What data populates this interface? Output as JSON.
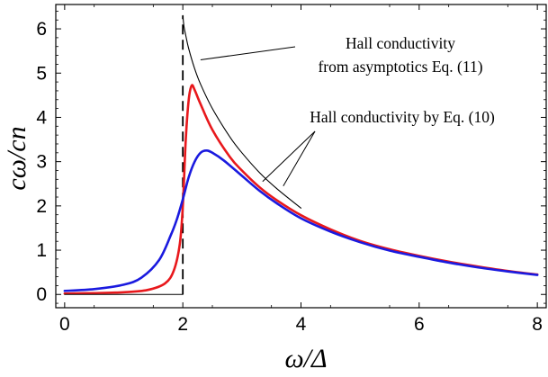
{
  "chart_data": {
    "type": "line",
    "xlabel": "ω/Δ",
    "ylabel": "cω/cn",
    "xlim": [
      -0.15,
      8.15
    ],
    "ylim": [
      -0.3,
      6.55
    ],
    "x_ticks": [
      0,
      2,
      4,
      6,
      8
    ],
    "y_ticks": [
      0,
      1,
      2,
      3,
      4,
      5,
      6
    ],
    "grid": false,
    "series": [
      {
        "color": "#e8181c",
        "x": [
          0,
          0.5,
          1.0,
          1.4,
          1.7,
          1.85,
          1.95,
          2.0,
          2.05,
          2.1,
          2.15,
          2.2,
          2.3,
          2.5,
          2.8,
          3.0,
          3.3,
          3.6,
          4.0,
          4.5,
          5.0,
          5.5,
          6.0,
          6.5,
          7.0,
          7.5,
          8.0
        ],
        "y": [
          0.02,
          0.03,
          0.05,
          0.1,
          0.25,
          0.55,
          1.15,
          2.0,
          3.5,
          4.4,
          4.72,
          4.62,
          4.3,
          3.72,
          3.1,
          2.8,
          2.42,
          2.12,
          1.79,
          1.47,
          1.21,
          1.02,
          0.87,
          0.74,
          0.63,
          0.53,
          0.45
        ]
      },
      {
        "color": "#1a1adf",
        "x": [
          0,
          0.5,
          1.0,
          1.3,
          1.6,
          1.8,
          1.9,
          2.0,
          2.1,
          2.2,
          2.3,
          2.4,
          2.5,
          2.7,
          3.0,
          3.3,
          3.6,
          4.0,
          4.5,
          5.0,
          5.5,
          6.0,
          6.5,
          7.0,
          7.5,
          8.0
        ],
        "y": [
          0.08,
          0.12,
          0.22,
          0.38,
          0.78,
          1.35,
          1.7,
          2.15,
          2.65,
          3.0,
          3.2,
          3.25,
          3.2,
          3.02,
          2.68,
          2.34,
          2.05,
          1.72,
          1.42,
          1.18,
          0.99,
          0.85,
          0.72,
          0.61,
          0.52,
          0.44
        ]
      },
      {
        "color": "#000000",
        "x": [
          2.0,
          2.02,
          2.05,
          2.1,
          2.2,
          2.3,
          2.5,
          2.8,
          3.0,
          3.3,
          3.6,
          4.0
        ],
        "y": [
          6.3,
          6.05,
          5.85,
          5.55,
          5.1,
          4.75,
          4.2,
          3.55,
          3.2,
          2.75,
          2.38,
          1.95
        ]
      },
      {
        "color": "#000000",
        "x": [
          0,
          2.0
        ],
        "y": [
          0,
          0
        ]
      }
    ],
    "vertical_lines": [
      {
        "x": 2.0,
        "y0": 0,
        "y1": 6.3,
        "style": "dashed",
        "color": "#000000"
      }
    ],
    "annotations": [
      {
        "lines": [
          "Hall conductivity",
          "from asymptotics Eq. (11)"
        ],
        "pointers": [
          [
            2.3,
            5.3
          ]
        ]
      },
      {
        "lines": [
          "Hall conductivity by Eq. (10)"
        ],
        "pointers": [
          [
            3.35,
            2.55
          ],
          [
            3.7,
            2.45
          ]
        ]
      }
    ]
  }
}
